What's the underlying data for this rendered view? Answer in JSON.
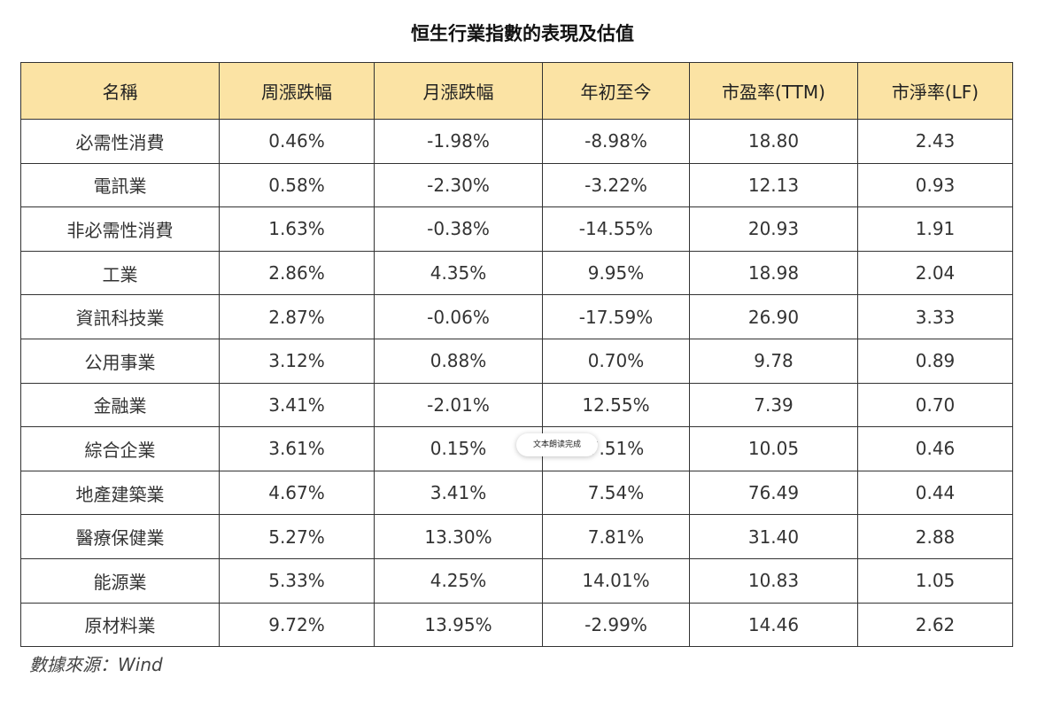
{
  "title": "恒生行業指數的表現及估值",
  "table": {
    "headers": [
      "名稱",
      "周漲跌幅",
      "月漲跌幅",
      "年初至今",
      "市盈率(TTM)",
      "市淨率(LF)"
    ],
    "rows": [
      [
        "必需性消費",
        "0.46%",
        "-1.98%",
        "-8.98%",
        "18.80",
        "2.43"
      ],
      [
        "電訊業",
        "0.58%",
        "-2.30%",
        "-3.22%",
        "12.13",
        "0.93"
      ],
      [
        "非必需性消費",
        "1.63%",
        "-0.38%",
        "-14.55%",
        "20.93",
        "1.91"
      ],
      [
        "工業",
        "2.86%",
        "4.35%",
        "9.95%",
        "18.98",
        "2.04"
      ],
      [
        "資訊科技業",
        "2.87%",
        "-0.06%",
        "-17.59%",
        "26.90",
        "3.33"
      ],
      [
        "公用事業",
        "3.12%",
        "0.88%",
        "0.70%",
        "9.78",
        "0.89"
      ],
      [
        "金融業",
        "3.41%",
        "-2.01%",
        "12.55%",
        "7.39",
        "0.70"
      ],
      [
        "綜合企業",
        "3.61%",
        "0.15%",
        "7.51%",
        "10.05",
        "0.46"
      ],
      [
        "地產建築業",
        "4.67%",
        "3.41%",
        "7.54%",
        "76.49",
        "0.44"
      ],
      [
        "醫療保健業",
        "5.27%",
        "13.30%",
        "7.81%",
        "31.40",
        "2.88"
      ],
      [
        "能源業",
        "5.33%",
        "4.25%",
        "14.01%",
        "10.83",
        "1.05"
      ],
      [
        "原材料業",
        "9.72%",
        "13.95%",
        "-2.99%",
        "14.46",
        "2.62"
      ]
    ]
  },
  "source": "數據來源：Wind",
  "toast": "文本朗读完成",
  "colors": {
    "header_bg": "#fbe3a4",
    "border": "#333333"
  }
}
